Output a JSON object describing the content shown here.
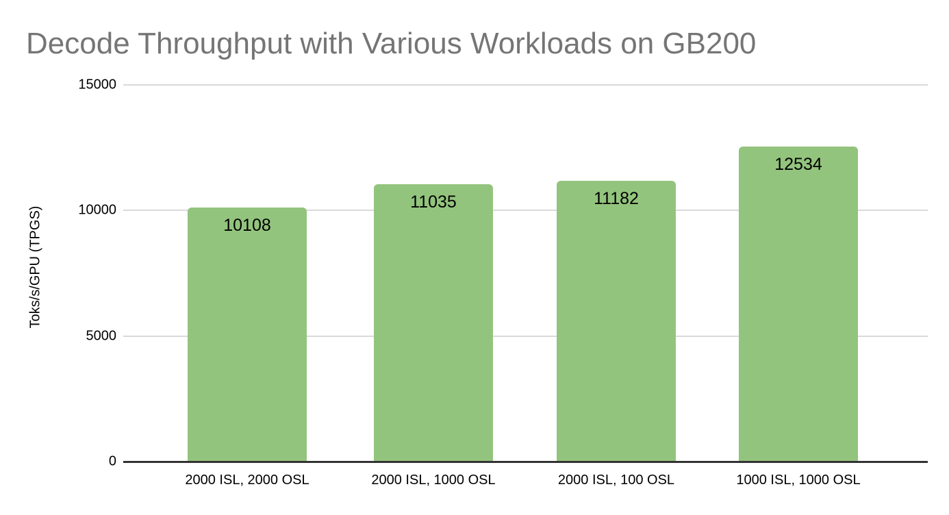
{
  "chart_data": {
    "type": "bar",
    "title": "Decode Throughput with Various Workloads on GB200",
    "ylabel": "Toks/s/GPU (TPGS)",
    "xlabel": "",
    "categories": [
      "2000 ISL, 2000 OSL",
      "2000 ISL, 1000 OSL",
      "2000 ISL, 100 OSL",
      "1000 ISL, 1000 OSL"
    ],
    "values": [
      10108,
      11035,
      11182,
      12534
    ],
    "ylim": [
      0,
      15000
    ],
    "yticks": [
      0,
      5000,
      10000,
      15000
    ],
    "grid": true,
    "legend_position": "none",
    "bar_color": "#93c47d",
    "title_color": "#757575",
    "gridline_color": "#d9d9d9",
    "axis_line_color": "#333333",
    "label_color": "#000000",
    "background_color": "#ffffff"
  }
}
